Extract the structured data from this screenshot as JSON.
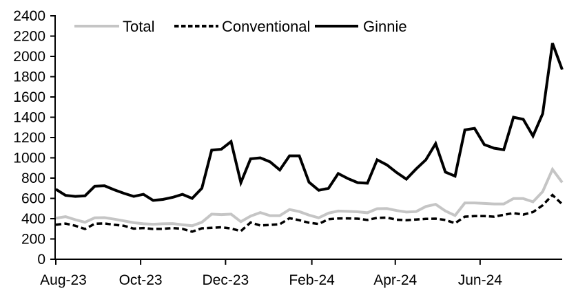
{
  "chart_data": {
    "type": "line",
    "title": "",
    "xlabel": "",
    "ylabel": "",
    "grid": false,
    "y_axis": {
      "min": 0,
      "max": 2400,
      "step": 200,
      "tick_labels": [
        "0",
        "200",
        "400",
        "600",
        "800",
        "1000",
        "1200",
        "1400",
        "1600",
        "1800",
        "2000",
        "2200",
        "2400"
      ]
    },
    "x_axis": {
      "unit": "week",
      "n_points": 53,
      "tick_labels": [
        "Aug-23",
        "Oct-23",
        "Dec-23",
        "Feb-24",
        "Apr-24",
        "Jun-24"
      ],
      "tick_week_positions": [
        0,
        8.71,
        17.43,
        26.29,
        34.86,
        43.57
      ]
    },
    "legend": {
      "position": "top",
      "entries": [
        {
          "label": "Total",
          "color": "#c5c5c5",
          "style": "solid"
        },
        {
          "label": "Conventional",
          "color": "#000000",
          "style": "dashed"
        },
        {
          "label": "Ginnie",
          "color": "#000000",
          "style": "solid"
        }
      ]
    },
    "series": [
      {
        "name": "Total",
        "color": "#c5c5c5",
        "style": "solid",
        "values": [
          405,
          420,
          390,
          365,
          408,
          410,
          395,
          378,
          360,
          350,
          345,
          350,
          352,
          340,
          330,
          365,
          445,
          440,
          445,
          370,
          425,
          460,
          430,
          430,
          490,
          470,
          435,
          408,
          455,
          475,
          472,
          468,
          458,
          498,
          500,
          480,
          465,
          470,
          520,
          542,
          476,
          431,
          555,
          555,
          550,
          545,
          545,
          598,
          598,
          566,
          667,
          886,
          757
        ]
      },
      {
        "name": "Conventional",
        "color": "#000000",
        "style": "dashed",
        "values": [
          340,
          352,
          330,
          298,
          350,
          353,
          340,
          330,
          302,
          308,
          298,
          300,
          308,
          300,
          272,
          305,
          310,
          315,
          303,
          278,
          362,
          333,
          338,
          345,
          405,
          385,
          360,
          348,
          395,
          402,
          403,
          400,
          388,
          408,
          410,
          390,
          385,
          392,
          398,
          400,
          387,
          355,
          420,
          425,
          425,
          420,
          438,
          455,
          440,
          465,
          532,
          633,
          543
        ]
      },
      {
        "name": "Ginnie",
        "color": "#000000",
        "style": "solid",
        "values": [
          690,
          630,
          620,
          625,
          720,
          725,
          685,
          650,
          620,
          640,
          580,
          590,
          610,
          640,
          600,
          700,
          1075,
          1085,
          1160,
          755,
          990,
          1000,
          960,
          880,
          1020,
          1020,
          760,
          680,
          700,
          845,
          795,
          755,
          750,
          980,
          930,
          855,
          790,
          890,
          980,
          1140,
          860,
          820,
          1275,
          1290,
          1130,
          1095,
          1080,
          1400,
          1380,
          1215,
          1435,
          2130,
          1870
        ]
      }
    ]
  }
}
